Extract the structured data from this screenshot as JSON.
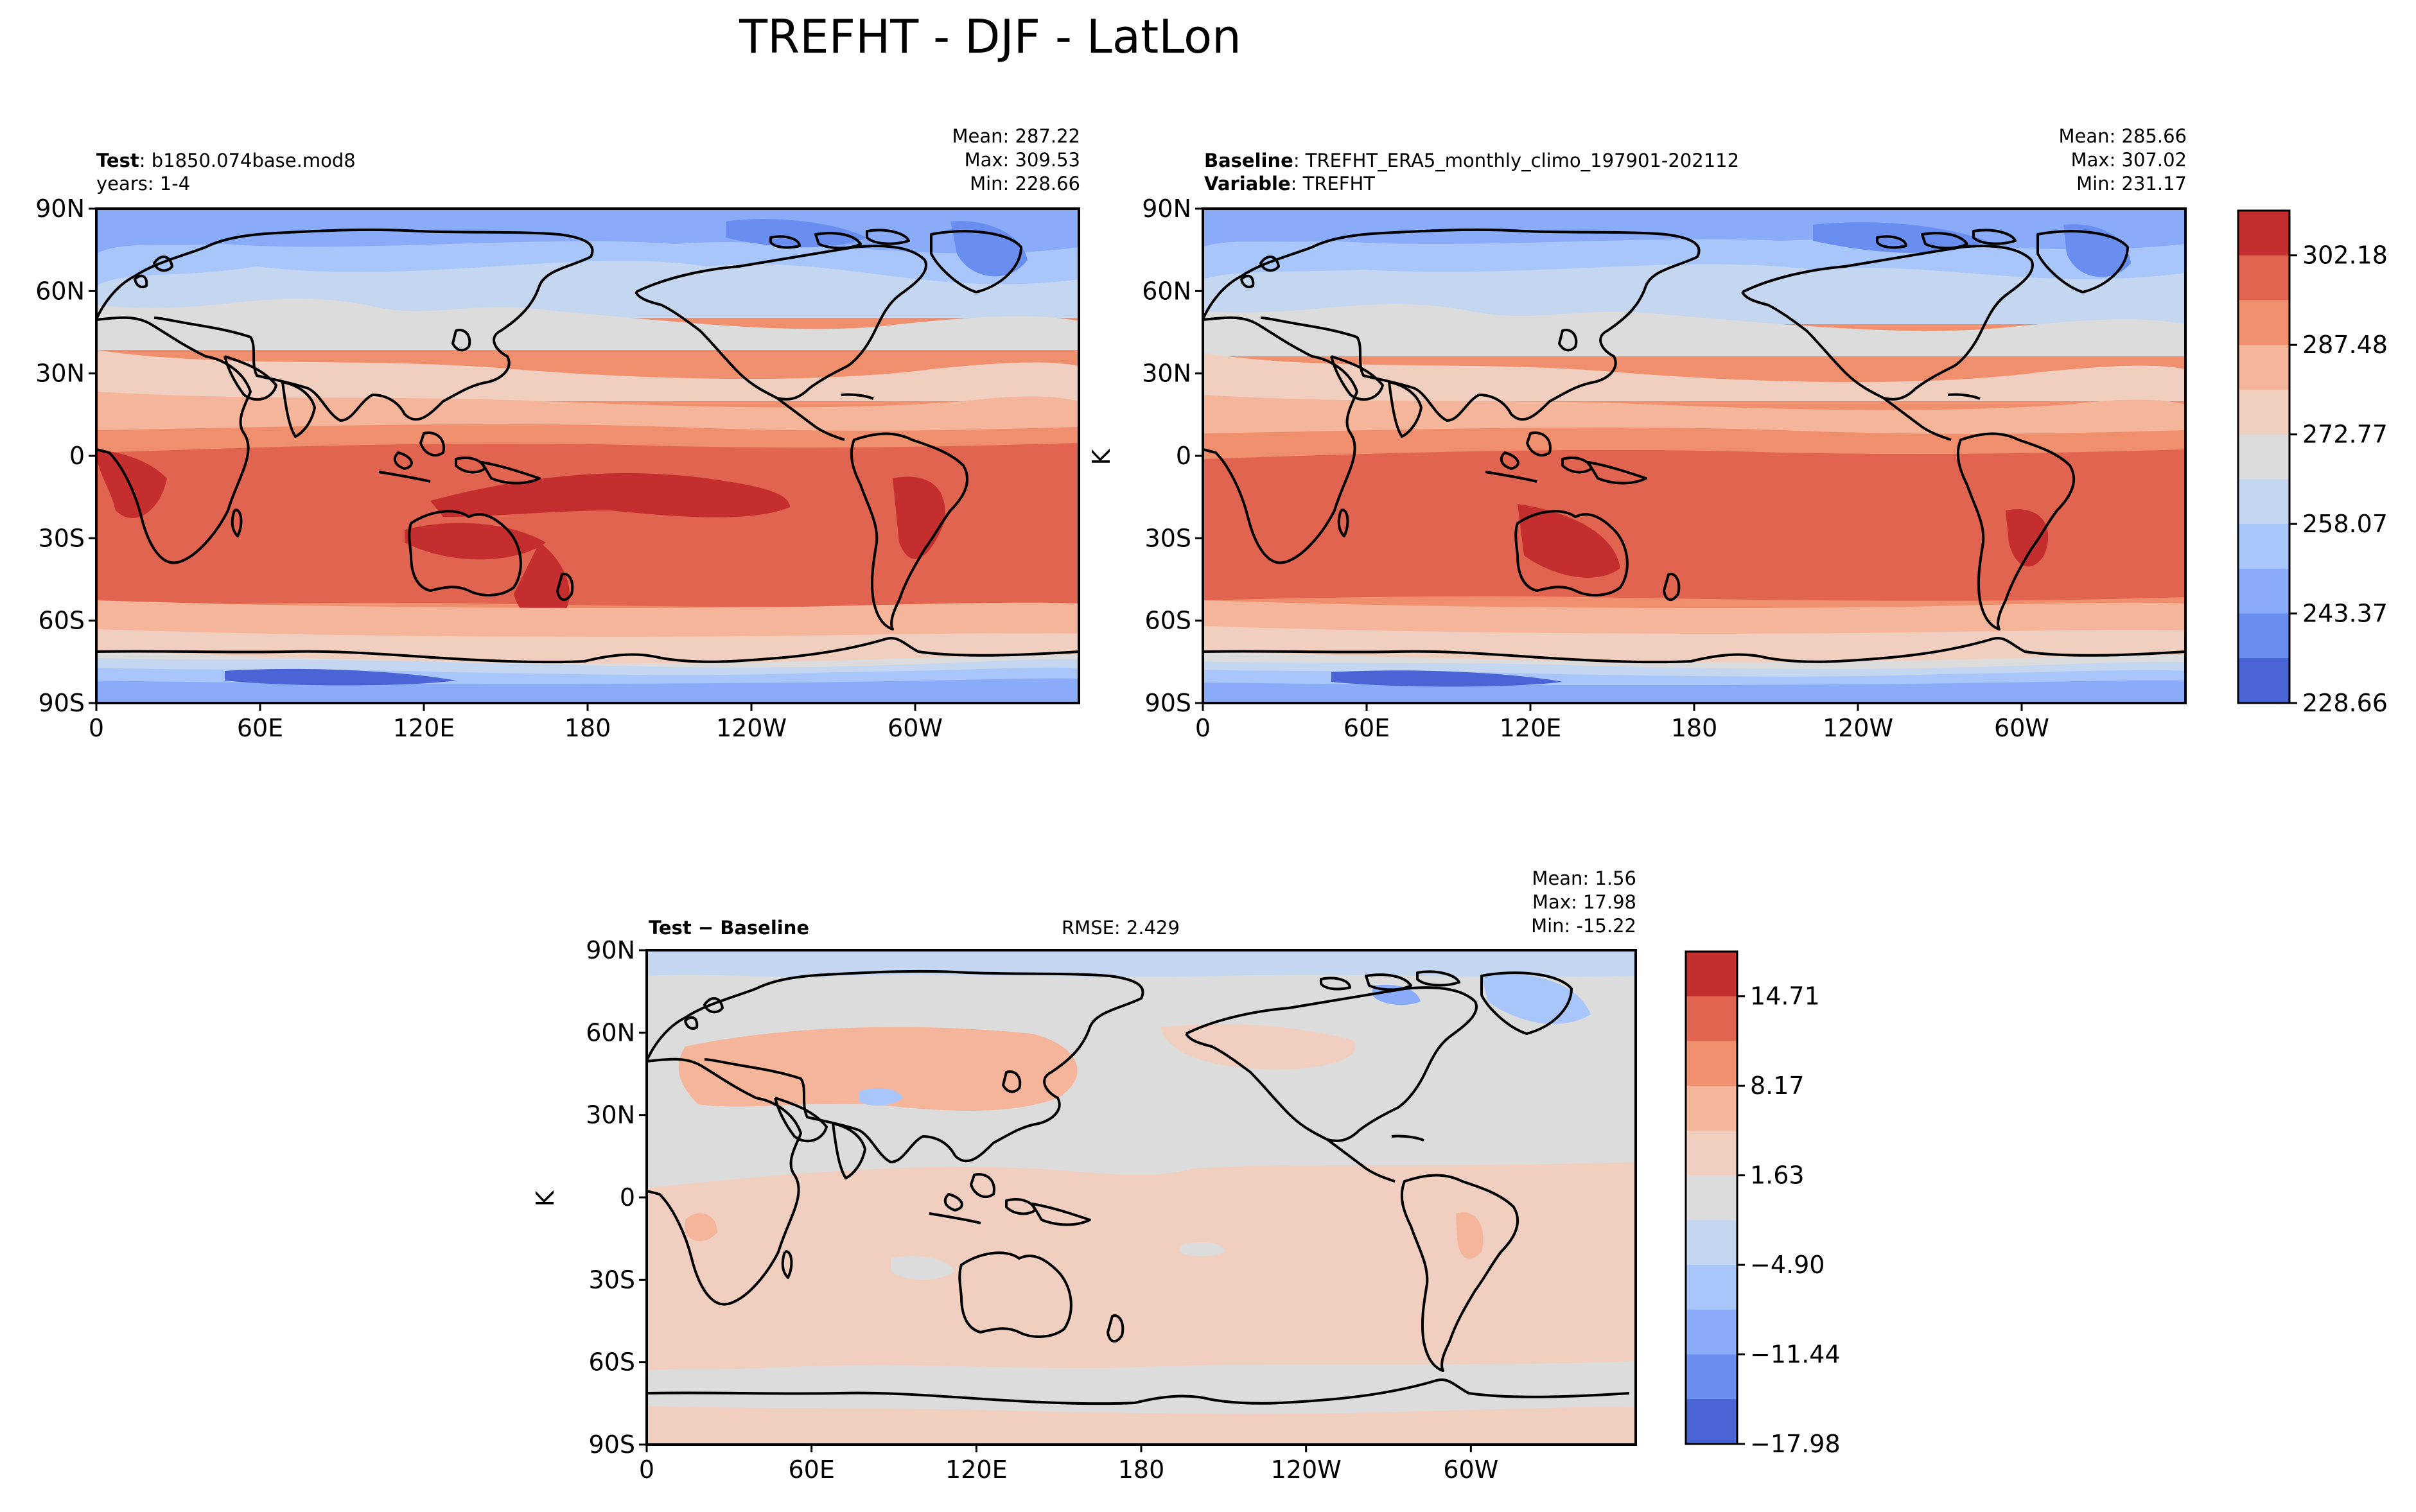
{
  "figure": {
    "title": "TREFHT - DJF - LatLon"
  },
  "panels": {
    "test": {
      "label_bold": "Test",
      "label_text": ": b1850.074base.mod8",
      "line2": "years: 1-4",
      "mean": "Mean: 287.22",
      "max": "Max: 309.53",
      "min": "Min: 228.66"
    },
    "baseline": {
      "label_bold": "Baseline",
      "label_text": ": TREFHT_ERA5_monthly_climo_197901-202112",
      "line2_bold": "Variable",
      "line2_text": ": TREFHT",
      "mean": "Mean: 285.66",
      "max": "Max: 307.02",
      "min": "Min: 231.17",
      "ylabel": "K"
    },
    "diff": {
      "label_bold": "Test − Baseline",
      "rmse": "RMSE: 2.429",
      "mean": "Mean:  1.56",
      "max": "Max: 17.98",
      "min": "Min: -15.22",
      "ylabel": "K"
    }
  },
  "axes": {
    "lat_ticks": [
      "90N",
      "60N",
      "30N",
      "0",
      "30S",
      "60S",
      "90S"
    ],
    "lon_ticks": [
      "0",
      "60E",
      "120E",
      "180",
      "120W",
      "60W"
    ]
  },
  "colorbars": {
    "main": {
      "ticks": [
        "302.18",
        "287.48",
        "272.77",
        "258.07",
        "243.37",
        "228.66"
      ],
      "colors_top_to_bottom": [
        "#c42e2e",
        "#e0644f",
        "#f08f6e",
        "#f5b59a",
        "#f0cfc0",
        "#dcdcdc",
        "#c5d6f0",
        "#a9c6fa",
        "#8aacf8",
        "#6a8ef0",
        "#4a63d5"
      ]
    },
    "diff": {
      "ticks": [
        "14.71",
        "8.17",
        "1.63",
        "−4.90",
        "−11.44",
        "−17.98"
      ],
      "colors_top_to_bottom": [
        "#c42e2e",
        "#e0644f",
        "#f08f6e",
        "#f5b59a",
        "#f0cfc0",
        "#dcdcdc",
        "#c5d6f0",
        "#a9c6fa",
        "#8aacf8",
        "#6a8ef0",
        "#4a63d5"
      ]
    }
  },
  "colors": {
    "t_warm4": "#c42e2e",
    "t_warm3": "#e0644f",
    "t_warm2": "#f08f6e",
    "t_warm1": "#f5b59a",
    "t_warm0": "#f0cfc0",
    "t_neutral": "#dcdcdc",
    "t_cool1": "#c5d6f0",
    "t_cool2": "#a9c6fa",
    "t_cool3": "#8aacf8",
    "t_cool4": "#6a8ef0",
    "t_cool5": "#4a63d5"
  }
}
